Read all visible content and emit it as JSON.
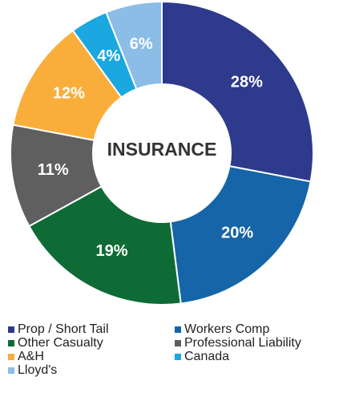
{
  "chart_data": {
    "type": "donut",
    "center_label": "INSURANCE",
    "categories": [
      "Prop / Short Tail",
      "Workers Comp",
      "Other Casualty",
      "Professional Liability",
      "A&H",
      "Canada",
      "Lloyd's"
    ],
    "values": [
      28,
      20,
      19,
      11,
      12,
      4,
      6
    ],
    "value_labels": [
      "28%",
      "20%",
      "19%",
      "11%",
      "12%",
      "4%",
      "6%"
    ],
    "colors": [
      "#2e3a8c",
      "#1565a8",
      "#0f6b35",
      "#5f5f5f",
      "#f9ae3c",
      "#1ba7e0",
      "#8bbde6"
    ],
    "legend": "bottom"
  }
}
